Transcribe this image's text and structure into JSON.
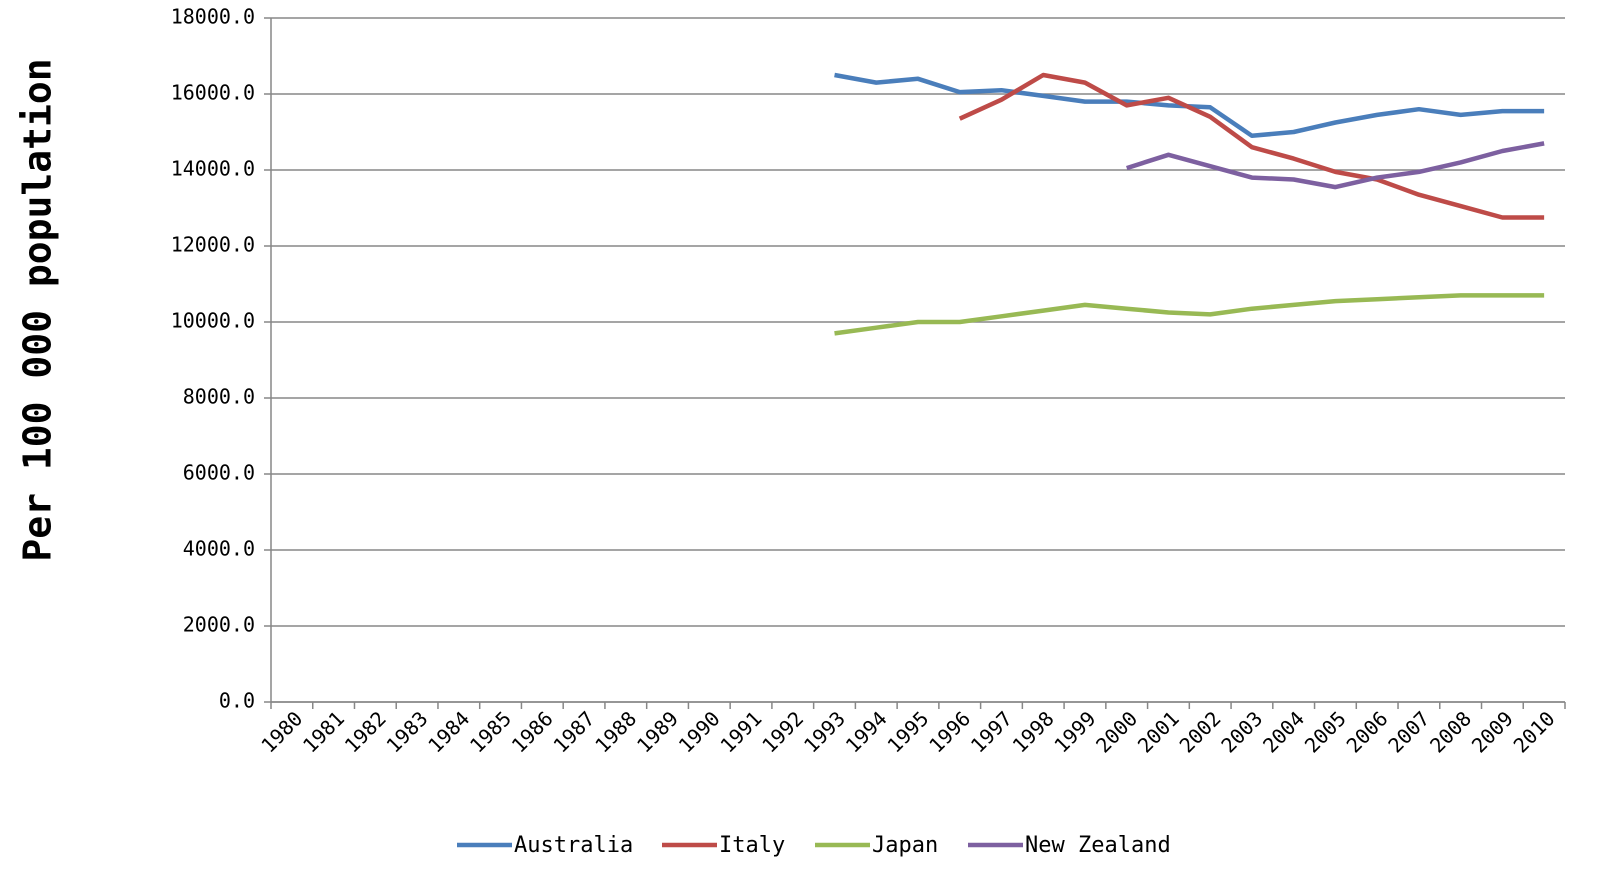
{
  "chart_data": {
    "type": "line",
    "y_label": "Per 100 000 population",
    "categories": [
      "1980",
      "1981",
      "1982",
      "1983",
      "1984",
      "1985",
      "1986",
      "1987",
      "1988",
      "1989",
      "1990",
      "1991",
      "1992",
      "1993",
      "1994",
      "1995",
      "1996",
      "1997",
      "1998",
      "1999",
      "2000",
      "2001",
      "2002",
      "2003",
      "2004",
      "2005",
      "2006",
      "2007",
      "2008",
      "2009",
      "2010"
    ],
    "series": [
      {
        "name": "Australia",
        "color": "#4a7ebb",
        "values": [
          null,
          null,
          null,
          null,
          null,
          null,
          null,
          null,
          null,
          null,
          null,
          null,
          null,
          16500,
          16300,
          16400,
          16050,
          16100,
          15950,
          15800,
          15800,
          15700,
          15650,
          14900,
          15000,
          15250,
          15450,
          15600,
          15450,
          15550,
          15550
        ]
      },
      {
        "name": "Italy",
        "color": "#be4b48",
        "values": [
          null,
          null,
          null,
          null,
          null,
          null,
          null,
          null,
          null,
          null,
          null,
          null,
          null,
          null,
          null,
          null,
          15350,
          15850,
          16500,
          16300,
          15700,
          15900,
          15400,
          14600,
          14300,
          13950,
          13750,
          13350,
          13050,
          12750,
          12750
        ]
      },
      {
        "name": "Japan",
        "color": "#98b954",
        "values": [
          null,
          null,
          null,
          null,
          null,
          null,
          null,
          null,
          null,
          null,
          null,
          null,
          null,
          9700,
          9850,
          10000,
          10000,
          10150,
          10300,
          10450,
          10350,
          10250,
          10200,
          10350,
          10450,
          10550,
          10600,
          10650,
          10700,
          10700,
          10700
        ]
      },
      {
        "name": "New Zealand",
        "color": "#7d60a0",
        "values": [
          null,
          null,
          null,
          null,
          null,
          null,
          null,
          null,
          null,
          null,
          null,
          null,
          null,
          null,
          null,
          null,
          null,
          null,
          null,
          null,
          14050,
          14400,
          14100,
          13800,
          13750,
          13550,
          13800,
          13950,
          14200,
          14500,
          14700
        ]
      }
    ],
    "ylim": [
      0,
      18000
    ],
    "yticks": [
      {
        "value": 0,
        "label": "0.0"
      },
      {
        "value": 2000,
        "label": "2000.0"
      },
      {
        "value": 4000,
        "label": "4000.0"
      },
      {
        "value": 6000,
        "label": "6000.0"
      },
      {
        "value": 8000,
        "label": "8000.0"
      },
      {
        "value": 10000,
        "label": "10000.0"
      },
      {
        "value": 12000,
        "label": "12000.0"
      },
      {
        "value": 14000,
        "label": "14000.0"
      },
      {
        "value": 16000,
        "label": "16000.0"
      },
      {
        "value": 18000,
        "label": "18000.0"
      }
    ],
    "grid": true,
    "legend": "bottom"
  }
}
